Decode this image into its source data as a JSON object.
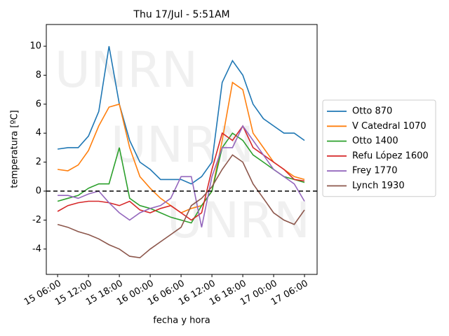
{
  "chart_data": {
    "type": "line",
    "title": "Thu 17/Jul - 5:51AM",
    "xlabel": "fecha y hora",
    "ylabel": "temperatura [ºC]",
    "watermark": "UNRN",
    "reference_line": 0,
    "legend": "right",
    "x": [
      "15 06:00",
      "15 08:00",
      "15 10:00",
      "15 12:00",
      "15 14:00",
      "15 16:00",
      "15 18:00",
      "15 20:00",
      "15 22:00",
      "16 00:00",
      "16 02:00",
      "16 04:00",
      "16 06:00",
      "16 08:00",
      "16 10:00",
      "16 12:00",
      "16 14:00",
      "16 16:00",
      "16 18:00",
      "16 20:00",
      "16 22:00",
      "17 00:00",
      "17 02:00",
      "17 04:00",
      "17 06:00"
    ],
    "xlim": [
      "15 03:48",
      "17 08:27"
    ],
    "xticks": [
      "15 06:00",
      "15 12:00",
      "15 18:00",
      "16 00:00",
      "16 06:00",
      "16 12:00",
      "16 18:00",
      "17 00:00",
      "17 06:00"
    ],
    "ylim": [
      -5.75,
      11.5
    ],
    "yticks": [
      -4,
      -2,
      0,
      2,
      4,
      6,
      8,
      10
    ],
    "series": [
      {
        "name": "Otto 870",
        "color": "#1f77b4",
        "values": [
          2.9,
          3.0,
          3.0,
          3.8,
          5.5,
          10.0,
          6.0,
          3.5,
          2.0,
          1.5,
          0.8,
          0.8,
          0.8,
          0.5,
          1.0,
          2.0,
          7.5,
          9.0,
          8.0,
          6.0,
          5.0,
          4.5,
          4.0,
          4.0,
          3.5
        ]
      },
      {
        "name": "V Catedral 1070",
        "color": "#ff7f0e",
        "values": [
          1.5,
          1.4,
          1.8,
          2.8,
          4.5,
          5.8,
          6.0,
          3.0,
          1.0,
          0.2,
          -0.5,
          -1.0,
          -1.5,
          -1.2,
          -1.0,
          0.0,
          3.5,
          7.5,
          7.0,
          4.0,
          3.0,
          2.0,
          1.5,
          1.0,
          0.8
        ]
      },
      {
        "name": "Otto 1400",
        "color": "#2ca02c",
        "values": [
          -0.7,
          -0.5,
          -0.3,
          0.2,
          0.5,
          0.5,
          3.0,
          -0.5,
          -1.0,
          -1.2,
          -1.5,
          -1.8,
          -2.0,
          -2.2,
          -1.0,
          0.0,
          3.0,
          4.0,
          3.5,
          2.5,
          2.0,
          1.5,
          1.0,
          0.8,
          0.6
        ]
      },
      {
        "name": "Refu López 1600",
        "color": "#d62728",
        "values": [
          -1.4,
          -1.0,
          -0.8,
          -0.7,
          -0.7,
          -0.8,
          -1.0,
          -0.7,
          -1.3,
          -1.5,
          -1.2,
          -1.0,
          -1.5,
          -2.0,
          -1.5,
          1.5,
          4.0,
          3.5,
          4.5,
          3.0,
          2.5,
          2.0,
          1.5,
          0.8,
          0.7
        ]
      },
      {
        "name": "Frey 1770",
        "color": "#9467bd",
        "values": [
          -0.3,
          -0.3,
          -0.5,
          -0.2,
          0.0,
          -0.8,
          -1.5,
          -2.0,
          -1.5,
          -1.2,
          -1.0,
          -0.5,
          1.0,
          1.0,
          -2.5,
          1.0,
          3.0,
          3.0,
          4.5,
          3.5,
          2.5,
          1.5,
          1.0,
          0.5,
          -0.7
        ]
      },
      {
        "name": "Lynch 1930",
        "color": "#8c564b",
        "values": [
          -2.3,
          -2.5,
          -2.8,
          -3.0,
          -3.3,
          -3.7,
          -4.0,
          -4.5,
          -4.6,
          -4.0,
          -3.5,
          -3.0,
          -2.5,
          -1.0,
          -0.5,
          0.3,
          1.5,
          2.5,
          2.0,
          0.5,
          -0.5,
          -1.5,
          -2.0,
          -2.3,
          -1.3
        ]
      }
    ]
  }
}
